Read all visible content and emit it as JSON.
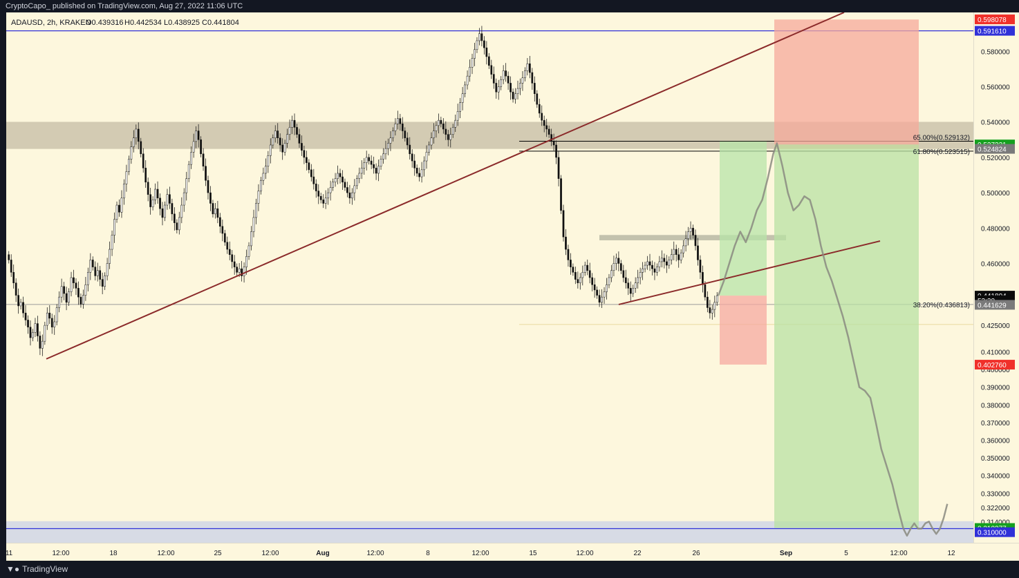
{
  "header": {
    "published_text": "CryptoCapo_ published on TradingView.com, Aug 27, 2022 11:06 UTC"
  },
  "chart_data": {
    "type": "candlestick",
    "symbol_line": {
      "symbol": "ADAUSD, 2h, KRAKEN",
      "open": "O0.439316",
      "high": "H0.442534",
      "low": "L0.438925",
      "close": "C0.441804"
    },
    "currency": "USD",
    "y_range": [
      0.302,
      0.602
    ],
    "y_ticks": [
      "0.580000",
      "0.560000",
      "0.540000",
      "0.520000",
      "0.500000",
      "0.480000",
      "0.460000",
      "0.425000",
      "0.410000",
      "0.400000",
      "0.390000",
      "0.380000",
      "0.370000",
      "0.360000",
      "0.350000",
      "0.340000",
      "0.330000",
      "0.322000",
      "0.314000"
    ],
    "x_ticks": [
      "11",
      "12:00",
      "18",
      "12:00",
      "25",
      "12:00",
      "Aug",
      "12:00",
      "8",
      "12:00",
      "15",
      "12:00",
      "22",
      "26",
      "Sep",
      "5",
      "12:00",
      "12"
    ],
    "candles_close": [
      0.462,
      0.455,
      0.449,
      0.442,
      0.436,
      0.438,
      0.432,
      0.428,
      0.424,
      0.418,
      0.421,
      0.426,
      0.419,
      0.412,
      0.416,
      0.425,
      0.432,
      0.429,
      0.424,
      0.427,
      0.435,
      0.441,
      0.447,
      0.443,
      0.438,
      0.444,
      0.452,
      0.449,
      0.446,
      0.441,
      0.437,
      0.442,
      0.448,
      0.455,
      0.462,
      0.458,
      0.453,
      0.456,
      0.451,
      0.447,
      0.453,
      0.46,
      0.468,
      0.476,
      0.485,
      0.493,
      0.489,
      0.497,
      0.505,
      0.512,
      0.519,
      0.526,
      0.531,
      0.536,
      0.529,
      0.522,
      0.514,
      0.506,
      0.499,
      0.492,
      0.496,
      0.502,
      0.497,
      0.491,
      0.486,
      0.493,
      0.499,
      0.494,
      0.488,
      0.483,
      0.479,
      0.486,
      0.493,
      0.5,
      0.508,
      0.516,
      0.523,
      0.529,
      0.535,
      0.53,
      0.522,
      0.515,
      0.507,
      0.5,
      0.494,
      0.488,
      0.491,
      0.486,
      0.481,
      0.477,
      0.472,
      0.468,
      0.465,
      0.461,
      0.458,
      0.455,
      0.457,
      0.453,
      0.458,
      0.464,
      0.47,
      0.478,
      0.486,
      0.494,
      0.501,
      0.507,
      0.511,
      0.515,
      0.521,
      0.527,
      0.531,
      0.535,
      0.531,
      0.527,
      0.523,
      0.528,
      0.533,
      0.537,
      0.541,
      0.537,
      0.533,
      0.528,
      0.524,
      0.52,
      0.517,
      0.513,
      0.509,
      0.505,
      0.501,
      0.498,
      0.496,
      0.494,
      0.497,
      0.5,
      0.503,
      0.506,
      0.508,
      0.511,
      0.509,
      0.506,
      0.503,
      0.5,
      0.497,
      0.5,
      0.504,
      0.508,
      0.511,
      0.514,
      0.517,
      0.52,
      0.518,
      0.516,
      0.514,
      0.511,
      0.515,
      0.519,
      0.522,
      0.525,
      0.528,
      0.531,
      0.535,
      0.539,
      0.542,
      0.539,
      0.535,
      0.531,
      0.527,
      0.522,
      0.518,
      0.514,
      0.511,
      0.509,
      0.513,
      0.518,
      0.523,
      0.527,
      0.531,
      0.535,
      0.538,
      0.541,
      0.539,
      0.536,
      0.533,
      0.53,
      0.533,
      0.537,
      0.541,
      0.546,
      0.551,
      0.556,
      0.561,
      0.566,
      0.571,
      0.576,
      0.581,
      0.586,
      0.59,
      0.586,
      0.582,
      0.577,
      0.572,
      0.567,
      0.562,
      0.557,
      0.56,
      0.564,
      0.569,
      0.566,
      0.562,
      0.557,
      0.553,
      0.556,
      0.559,
      0.562,
      0.565,
      0.569,
      0.573,
      0.568,
      0.562,
      0.556,
      0.55,
      0.545,
      0.541,
      0.538,
      0.536,
      0.533,
      0.529,
      0.527,
      0.52,
      0.508,
      0.49,
      0.475,
      0.468,
      0.462,
      0.458,
      0.455,
      0.451,
      0.449,
      0.452,
      0.455,
      0.459,
      0.456,
      0.452,
      0.448,
      0.445,
      0.442,
      0.438,
      0.441,
      0.444,
      0.448,
      0.452,
      0.456,
      0.46,
      0.463,
      0.46,
      0.456,
      0.452,
      0.449,
      0.446,
      0.443,
      0.446,
      0.449,
      0.452,
      0.455,
      0.457,
      0.459,
      0.461,
      0.459,
      0.457,
      0.455,
      0.458,
      0.461,
      0.463,
      0.461,
      0.459,
      0.462,
      0.465,
      0.468,
      0.465,
      0.462,
      0.466,
      0.47,
      0.474,
      0.478,
      0.48,
      0.476,
      0.47,
      0.462,
      0.455,
      0.448,
      0.441,
      0.435,
      0.432,
      0.434,
      0.438,
      0.4418
    ],
    "projection_points": [
      [
        0.4418,
        0
      ],
      [
        0.45,
        3
      ],
      [
        0.46,
        6
      ],
      [
        0.47,
        9
      ],
      [
        0.478,
        12
      ],
      [
        0.472,
        15
      ],
      [
        0.48,
        18
      ],
      [
        0.49,
        21
      ],
      [
        0.496,
        24
      ],
      [
        0.508,
        27
      ],
      [
        0.522,
        30
      ],
      [
        0.528,
        32
      ],
      [
        0.515,
        35
      ],
      [
        0.5,
        38
      ],
      [
        0.49,
        41
      ],
      [
        0.493,
        44
      ],
      [
        0.498,
        47
      ],
      [
        0.496,
        50
      ],
      [
        0.485,
        53
      ],
      [
        0.47,
        56
      ],
      [
        0.458,
        59
      ],
      [
        0.45,
        62
      ],
      [
        0.44,
        65
      ],
      [
        0.43,
        68
      ],
      [
        0.418,
        71
      ],
      [
        0.404,
        74
      ],
      [
        0.39,
        77
      ],
      [
        0.388,
        80
      ],
      [
        0.384,
        83
      ],
      [
        0.37,
        86
      ],
      [
        0.355,
        89
      ],
      [
        0.345,
        92
      ],
      [
        0.335,
        95
      ],
      [
        0.322,
        98
      ],
      [
        0.31,
        101
      ],
      [
        0.306,
        103
      ],
      [
        0.31,
        105
      ],
      [
        0.313,
        107
      ],
      [
        0.31,
        109
      ],
      [
        0.31,
        111
      ],
      [
        0.313,
        113
      ],
      [
        0.314,
        115
      ],
      [
        0.31,
        117
      ],
      [
        0.307,
        119
      ],
      [
        0.31,
        121
      ],
      [
        0.316,
        123
      ],
      [
        0.324,
        125
      ]
    ],
    "horizontal_lines": [
      {
        "name": "upper-blue",
        "price": 0.59161,
        "color": "#3030d8"
      },
      {
        "name": "lower-blue",
        "price": 0.31,
        "color": "#3030d8"
      },
      {
        "name": "grey-mid",
        "price": 0.4368,
        "color": "#9a9a9a"
      },
      {
        "name": "fib-650",
        "price": 0.529132,
        "color": "#000000"
      },
      {
        "name": "fib-618",
        "price": 0.523515,
        "color": "#000000"
      }
    ],
    "zones": [
      {
        "name": "resistance-zone",
        "from": 0.5248,
        "to": 0.5401,
        "color": "#cbc3ab"
      },
      {
        "name": "support-zone",
        "from": 0.302,
        "to": 0.3142,
        "color": "#d0d6e6"
      },
      {
        "name": "consolidation-zone",
        "from": 0.4731,
        "to": 0.4761,
        "color": "#b8b8a4"
      }
    ],
    "trendlines": [
      {
        "name": "rising-trendline"
      },
      {
        "name": "lower-trendline"
      }
    ],
    "fib_labels": [
      {
        "text": "65.00%(0.529132)",
        "price": 0.529132
      },
      {
        "text": "61.80%(0.523515)",
        "price": 0.523515
      },
      {
        "text": "38.20%(0.436813)",
        "price": 0.436813
      }
    ],
    "price_labels": [
      {
        "text": "0.598078",
        "price": 0.598078,
        "bg": "#f0302a",
        "fg": "#ffffff"
      },
      {
        "text": "0.591610",
        "price": 0.59161,
        "bg": "#3030d8",
        "fg": "#ffffff"
      },
      {
        "text": "0.527321",
        "price": 0.527321,
        "bg": "#14a01e",
        "fg": "#ffffff"
      },
      {
        "text": "0.524824",
        "price": 0.524824,
        "bg": "#7a7a7a",
        "fg": "#ffffff"
      },
      {
        "text": "0.441804",
        "price": 0.441804,
        "bg": "#0b0b0b",
        "fg": "#ffffff"
      },
      {
        "text": "53:20",
        "price": 0.4392,
        "bg": "#0b0b0b",
        "fg": "#ffffff"
      },
      {
        "text": "0.441629",
        "price": 0.4366,
        "bg": "#7a7a7a",
        "fg": "#ffffff"
      },
      {
        "text": "0.402760",
        "price": 0.40276,
        "bg": "#f0302a",
        "fg": "#ffffff"
      },
      {
        "text": "0.310377",
        "price": 0.310377,
        "bg": "#14a01e",
        "fg": "#ffffff"
      },
      {
        "text": "0.310000",
        "price": 0.308,
        "bg": "#3030d8",
        "fg": "#ffffff"
      }
    ]
  },
  "footer": {
    "brand": "TradingView",
    "logo_icon": "tradingview-logo-icon"
  }
}
